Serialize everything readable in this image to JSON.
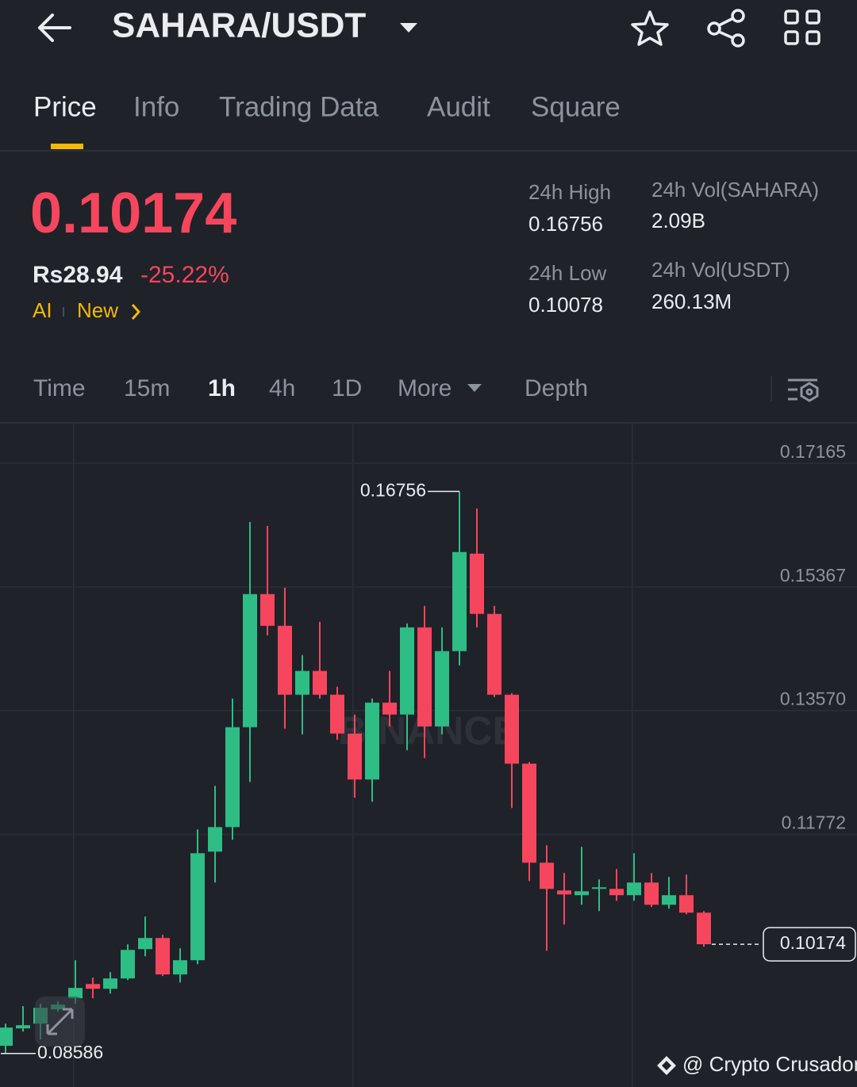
{
  "header": {
    "pair": "SAHARA/USDT"
  },
  "tabs": [
    "Price",
    "Info",
    "Trading Data",
    "Audit",
    "Square"
  ],
  "ticker": {
    "price": "0.10174",
    "fiat": "Rs28.94",
    "change": "-25.22%",
    "ai": "AI",
    "new": "New"
  },
  "stats": [
    {
      "label": "24h High",
      "value": "0.16756"
    },
    {
      "label": "24h Vol(SAHARA)",
      "value": "2.09B"
    },
    {
      "label": "24h Low",
      "value": "0.10078"
    },
    {
      "label": "24h Vol(USDT)",
      "value": "260.13M"
    }
  ],
  "intervals": [
    "Time",
    "15m",
    "1h",
    "4h",
    "1D",
    "More",
    "Depth"
  ],
  "chart_data": {
    "type": "candlestick",
    "watermark": "BINANCE",
    "open": [
      0.08698,
      0.08951,
      0.0902,
      0.09228,
      0.09389,
      0.09596,
      0.09527,
      0.09677,
      0.10103,
      0.10265,
      0.09735,
      0.09942,
      0.1152,
      0.11877,
      0.13329,
      0.15264,
      0.14803,
      0.13801,
      0.14147,
      0.13801,
      0.13237,
      0.12569,
      0.13686,
      0.13513,
      0.1478,
      0.1334,
      0.14435,
      0.15852,
      0.14976,
      0.13801,
      0.12799,
      0.11359,
      0.10956,
      0.10887,
      0.10979,
      0.10979,
      0.10887,
      0.11071,
      0.10748,
      0.10887,
      0.10633
    ],
    "high": [
      0.0902,
      0.09274,
      0.09308,
      0.09343,
      0.09942,
      0.09689,
      0.09769,
      0.10172,
      0.10576,
      0.10311,
      0.10115,
      0.11843,
      0.12476,
      0.13744,
      0.16313,
      0.16255,
      0.15356,
      0.14377,
      0.14861,
      0.13916,
      0.13513,
      0.13744,
      0.14147,
      0.14838,
      0.15091,
      0.1478,
      0.16756,
      0.16508,
      0.15091,
      0.13824,
      0.12822,
      0.11612,
      0.11209,
      0.11589,
      0.11117,
      0.11267,
      0.11497,
      0.11209,
      0.11152,
      0.11186,
      0.10656
    ],
    "low": [
      0.08586,
      0.08905,
      0.0879,
      0.09193,
      0.09308,
      0.09389,
      0.09458,
      0.09654,
      0.1,
      0.09712,
      0.09619,
      0.09884,
      0.11071,
      0.11693,
      0.12534,
      0.14665,
      0.13306,
      0.13225,
      0.13744,
      0.13145,
      0.12304,
      0.12246,
      0.1334,
      0.12995,
      0.1288,
      0.13225,
      0.14227,
      0.1478,
      0.13767,
      0.12154,
      0.11094,
      0.1008,
      0.1046,
      0.10748,
      0.10656,
      0.10806,
      0.10806,
      0.10714,
      0.10691,
      0.1061,
      0.10138
    ],
    "close": [
      0.08963,
      0.08997,
      0.09251,
      0.09297,
      0.09539,
      0.09527,
      0.09677,
      0.10092,
      0.10265,
      0.09735,
      0.09942,
      0.11497,
      0.11877,
      0.13329,
      0.15264,
      0.14803,
      0.13801,
      0.14147,
      0.13801,
      0.13237,
      0.12569,
      0.13686,
      0.13513,
      0.1478,
      0.1334,
      0.14435,
      0.15875,
      0.14976,
      0.13801,
      0.12799,
      0.11359,
      0.10979,
      0.10898,
      0.10944,
      0.11002,
      0.10887,
      0.11071,
      0.10748,
      0.10887,
      0.10633,
      0.10174
    ],
    "up_color": "#2ebd85",
    "down_color": "#f6465d",
    "ylim": [
      0.08099,
      0.17741
    ],
    "yticks": [
      0.17165,
      0.15367,
      {
        "value": 0.1357,
        "label": "0.13570"
      },
      0.11772
    ],
    "grid": true
  },
  "watermark": "@ Crypto Crusador"
}
